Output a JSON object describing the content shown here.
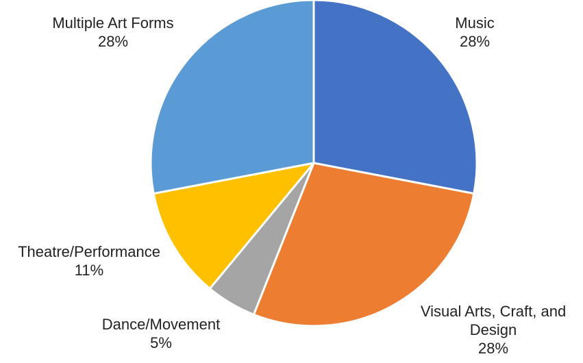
{
  "chart_data": {
    "type": "pie",
    "title": "",
    "start_angle_deg": 0,
    "direction": "clockwise",
    "slices": [
      {
        "label": "Music",
        "label_lines": [
          "Music"
        ],
        "value": 28,
        "value_label": "28%",
        "color": "#4472C4"
      },
      {
        "label": "Visual Arts, Craft, and Design",
        "label_lines": [
          "Visual Arts, Craft, and",
          "Design"
        ],
        "value": 28,
        "value_label": "28%",
        "color": "#ED7D31"
      },
      {
        "label": "Dance/Movement",
        "label_lines": [
          "Dance/Movement"
        ],
        "value": 5,
        "value_label": "5%",
        "color": "#A5A5A5"
      },
      {
        "label": "Theatre/Performance",
        "label_lines": [
          "Theatre/Performance"
        ],
        "value": 11,
        "value_label": "11%",
        "color": "#FFC000"
      },
      {
        "label": "Multiple Art Forms",
        "label_lines": [
          "Multiple Art Forms"
        ],
        "value": 28,
        "value_label": "28%",
        "color": "#5B9BD5"
      }
    ],
    "legend": "none",
    "data_labels": "outside"
  }
}
